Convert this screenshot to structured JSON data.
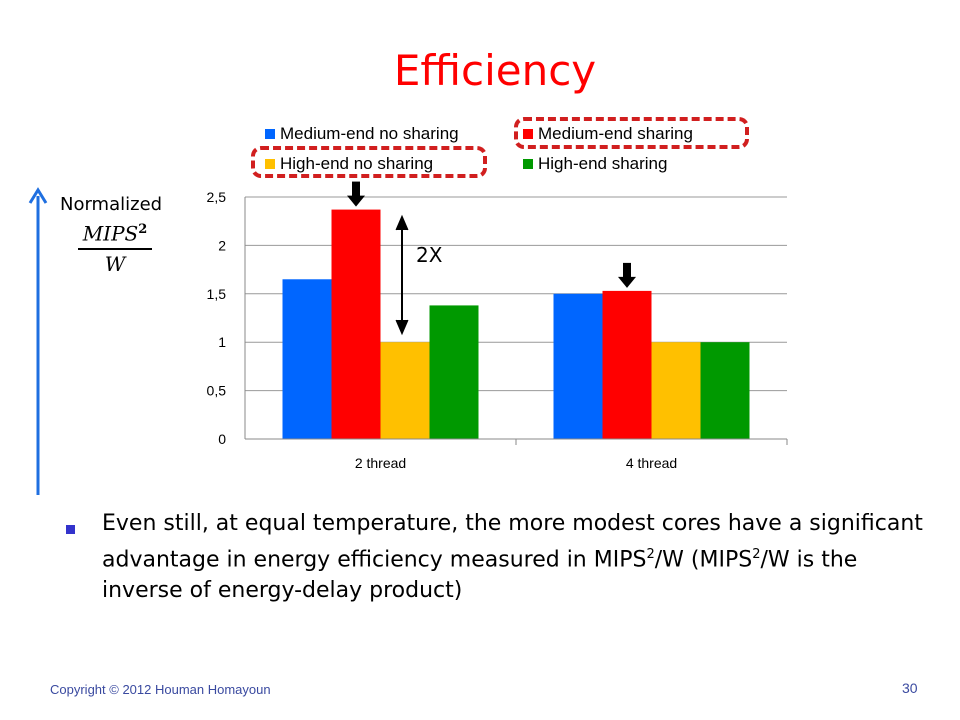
{
  "slide": {
    "title": "Efficiency",
    "y_annotation_top": "Normalized",
    "y_annotation_numerator": "MIPS",
    "y_annotation_exponent": "2",
    "y_annotation_denominator": "W",
    "annotation_2x": "2X",
    "bullet": {
      "part1": "Even still, at equal temperature, the more modest cores have a significant advantage in energy efficiency measured in MIPS",
      "sup1": "2",
      "part2": "/W (MIPS",
      "sup2": "2",
      "part3": "/W is the inverse of energy-delay product)"
    },
    "footer_left": "Copyright © 2012 Houman Homayoun",
    "page_number": "30"
  },
  "chart_data": {
    "type": "bar",
    "title": "",
    "xlabel": "",
    "ylabel": "",
    "categories": [
      "2 thread",
      "4 thread"
    ],
    "series": [
      {
        "name": "Medium-end no sharing",
        "color": "#0066ff",
        "values": [
          1.65,
          1.5
        ]
      },
      {
        "name": "Medium-end sharing",
        "color": "#ff0000",
        "values": [
          2.37,
          1.53
        ]
      },
      {
        "name": "High-end no sharing",
        "color": "#ffc000",
        "values": [
          1.0,
          1.0
        ]
      },
      {
        "name": "High-end sharing",
        "color": "#009900",
        "values": [
          1.38,
          1.0
        ]
      }
    ],
    "ylim": [
      0,
      2.5
    ],
    "yticks": [
      "0",
      "0,5",
      "1",
      "1,5",
      "2",
      "2,5"
    ],
    "grid": true,
    "legend_position": "top",
    "highlighted_legend_entries": [
      "Medium-end sharing",
      "High-end no sharing"
    ],
    "highlight_color": "#d11f1f",
    "arrow_markers_on": "Medium-end sharing",
    "accent_color": "#1f6fe0"
  }
}
